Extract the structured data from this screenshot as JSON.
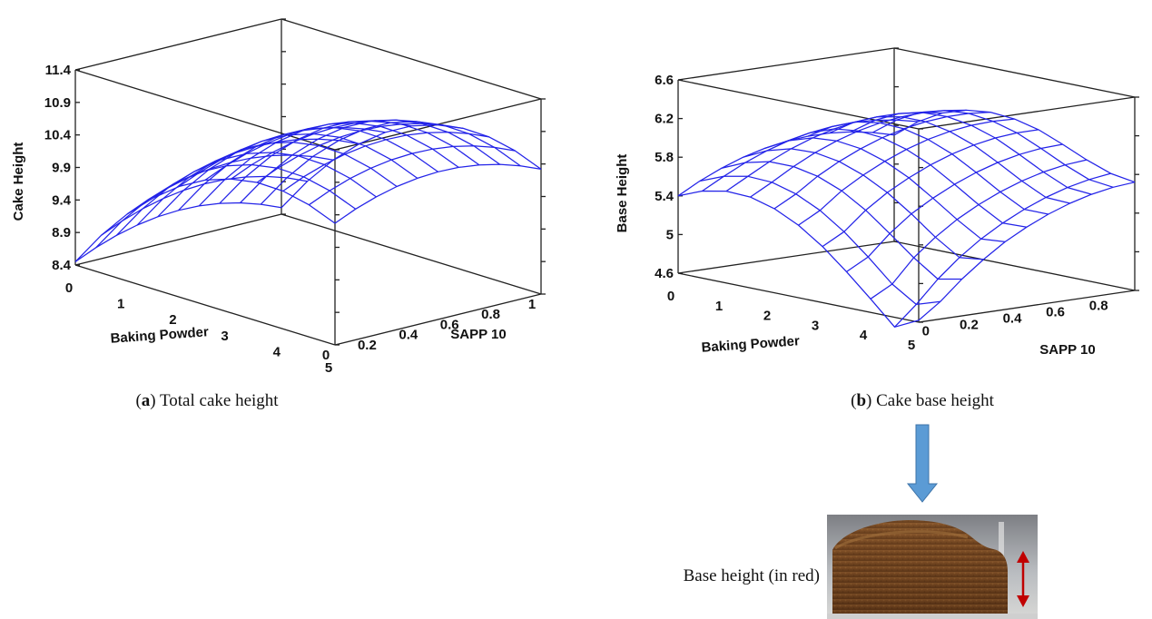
{
  "chart_data": [
    {
      "type": "surface",
      "caption_letter": "a",
      "caption_text": "Total cake height",
      "xlabel": "Baking Powder",
      "ylabel": "SAPP 10",
      "zlabel": "Cake Height",
      "x_ticks": [
        "0",
        "1",
        "2",
        "3",
        "4",
        "5"
      ],
      "y_ticks": [
        "0",
        "0.2",
        "0.4",
        "0.6",
        "0.8",
        "1"
      ],
      "z_ticks": [
        "8.4",
        "8.9",
        "9.4",
        "9.9",
        "10.4",
        "10.9",
        "11.4"
      ],
      "xlim": [
        0,
        5
      ],
      "ylim": [
        0,
        1
      ],
      "zlim": [
        8.4,
        11.4
      ],
      "grid_x": [
        0,
        0.5,
        1,
        1.5,
        2,
        2.5,
        3,
        3.5,
        4,
        4.5,
        5
      ],
      "grid_y": [
        0,
        0.1,
        0.2,
        0.3,
        0.4,
        0.5,
        0.6,
        0.7,
        0.8,
        0.9,
        1
      ],
      "surface": [
        [
          8.45,
          8.98,
          9.43,
          9.8,
          10.1,
          10.32,
          10.46,
          10.53,
          10.52,
          10.43,
          10.27
        ],
        [
          8.59,
          9.12,
          9.57,
          9.94,
          10.24,
          10.46,
          10.6,
          10.67,
          10.66,
          10.57,
          10.41
        ],
        [
          8.7,
          9.23,
          9.68,
          10.05,
          10.35,
          10.57,
          10.71,
          10.78,
          10.77,
          10.68,
          10.52
        ],
        [
          8.78,
          9.31,
          9.76,
          10.13,
          10.43,
          10.65,
          10.79,
          10.86,
          10.85,
          10.76,
          10.6
        ],
        [
          8.83,
          9.36,
          9.81,
          10.18,
          10.48,
          10.7,
          10.84,
          10.91,
          10.9,
          10.81,
          10.65
        ],
        [
          8.85,
          9.38,
          9.83,
          10.2,
          10.5,
          10.72,
          10.86,
          10.93,
          10.92,
          10.83,
          10.67
        ],
        [
          8.84,
          9.37,
          9.82,
          10.19,
          10.49,
          10.71,
          10.85,
          10.92,
          10.91,
          10.82,
          10.66
        ],
        [
          8.8,
          9.33,
          9.78,
          10.15,
          10.45,
          10.67,
          10.81,
          10.88,
          10.87,
          10.78,
          10.62
        ],
        [
          8.73,
          9.26,
          9.71,
          10.08,
          10.38,
          10.6,
          10.74,
          10.81,
          10.8,
          10.71,
          10.55
        ],
        [
          8.63,
          9.16,
          9.61,
          9.98,
          10.28,
          10.5,
          10.64,
          10.71,
          10.7,
          10.61,
          10.45
        ],
        [
          8.5,
          9.03,
          9.48,
          9.85,
          10.15,
          10.37,
          10.51,
          10.58,
          10.57,
          10.48,
          10.32
        ]
      ]
    },
    {
      "type": "surface",
      "caption_letter": "b",
      "caption_text": "Cake base height",
      "xlabel": "Baking Powder",
      "ylabel": "SAPP 10",
      "zlabel": "Base Height",
      "x_ticks": [
        "0",
        "1",
        "2",
        "3",
        "4",
        "5"
      ],
      "y_ticks": [
        "0",
        "0.2",
        "0.4",
        "0.6",
        "0.8"
      ],
      "z_ticks": [
        "4.6",
        "5",
        "5.4",
        "5.8",
        "6.2",
        "6.6"
      ],
      "xlim": [
        0,
        5
      ],
      "ylim": [
        -0.1,
        0.9
      ],
      "zlim": [
        4.6,
        6.6
      ],
      "grid_x": [
        0,
        0.5,
        1,
        1.5,
        2,
        2.5,
        3,
        3.5,
        4,
        4.5,
        5
      ],
      "grid_y": [
        -0.1,
        0,
        0.1,
        0.2,
        0.3,
        0.4,
        0.5,
        0.6,
        0.7,
        0.8,
        0.9
      ],
      "surface": [
        [
          5.4,
          5.5,
          5.55,
          5.54,
          5.47,
          5.35,
          5.18,
          4.97,
          4.74,
          4.5,
          4.62
        ],
        [
          5.52,
          5.62,
          5.67,
          5.66,
          5.59,
          5.47,
          5.3,
          5.09,
          4.86,
          4.7,
          4.78
        ],
        [
          5.62,
          5.73,
          5.79,
          5.79,
          5.74,
          5.64,
          5.49,
          5.3,
          5.1,
          4.93,
          4.98
        ],
        [
          5.7,
          5.82,
          5.89,
          5.9,
          5.86,
          5.77,
          5.64,
          5.47,
          5.28,
          5.12,
          5.15
        ],
        [
          5.76,
          5.89,
          5.97,
          5.99,
          5.96,
          5.88,
          5.76,
          5.6,
          5.43,
          5.28,
          5.3
        ],
        [
          5.8,
          5.94,
          6.03,
          6.06,
          6.04,
          5.97,
          5.86,
          5.71,
          5.55,
          5.41,
          5.42
        ],
        [
          5.82,
          5.97,
          6.07,
          6.11,
          6.1,
          6.04,
          5.94,
          5.8,
          5.65,
          5.52,
          5.52
        ],
        [
          5.82,
          5.98,
          6.09,
          6.14,
          6.14,
          6.09,
          6,
          5.87,
          5.73,
          5.61,
          5.6
        ],
        [
          5.8,
          5.97,
          6.09,
          6.15,
          6.16,
          6.12,
          6.04,
          5.92,
          5.79,
          5.68,
          5.66
        ],
        [
          5.76,
          5.94,
          6.07,
          6.14,
          6.16,
          6.13,
          6.06,
          5.95,
          5.83,
          5.73,
          5.7
        ],
        [
          5.7,
          5.89,
          6.03,
          6.11,
          6.14,
          6.12,
          6.06,
          5.96,
          5.85,
          5.76,
          5.72
        ]
      ]
    }
  ],
  "arrow_color": "#5b9bd5",
  "mesh_color": "#2323e8",
  "photo": {
    "label": "Base height (in red)",
    "marker_color": "#c00000"
  }
}
